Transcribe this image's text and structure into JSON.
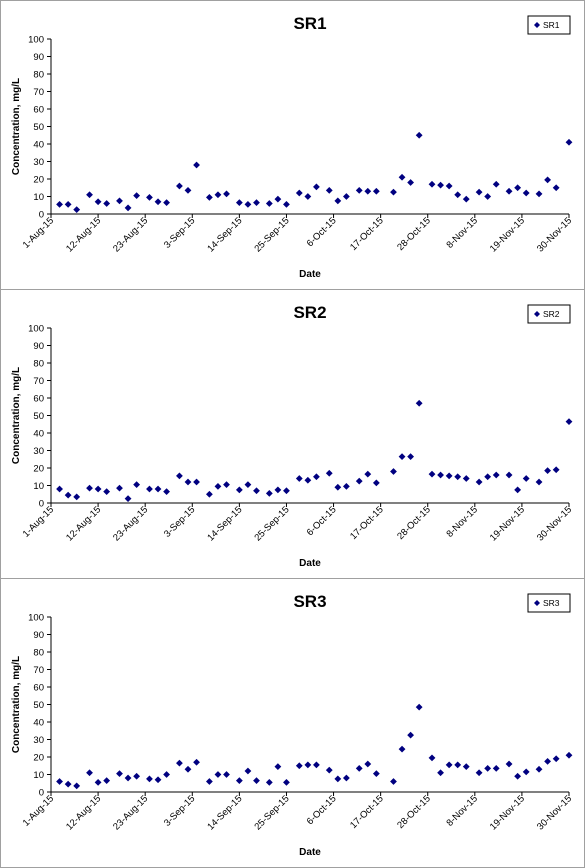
{
  "chart_data": [
    {
      "type": "scatter",
      "title": "SR1",
      "xlabel": "Date",
      "ylabel": "Concentration, mg/L",
      "ylim": [
        0,
        100
      ],
      "yticks": [
        "0",
        "10",
        "20",
        "30",
        "40",
        "50",
        "60",
        "70",
        "80",
        "90",
        "100"
      ],
      "xlim": [
        "2015-08-01",
        "2015-11-30"
      ],
      "xticks": [
        "1-Aug-15",
        "12-Aug-15",
        "23-Aug-15",
        "3-Sep-15",
        "14-Sep-15",
        "25-Sep-15",
        "6-Oct-15",
        "17-Oct-15",
        "28-Oct-15",
        "8-Nov-15",
        "19-Nov-15",
        "30-Nov-15"
      ],
      "legend": {
        "position": "top-right",
        "entries": [
          "SR1"
        ]
      },
      "grid": false,
      "marker_color": "#000080",
      "series": [
        {
          "name": "SR1",
          "points": [
            [
              "2015-08-03",
              5.5
            ],
            [
              "2015-08-05",
              5.5
            ],
            [
              "2015-08-07",
              2.5
            ],
            [
              "2015-08-10",
              11
            ],
            [
              "2015-08-12",
              7
            ],
            [
              "2015-08-14",
              6
            ],
            [
              "2015-08-17",
              7.5
            ],
            [
              "2015-08-19",
              3.5
            ],
            [
              "2015-08-21",
              10.5
            ],
            [
              "2015-08-24",
              9.5
            ],
            [
              "2015-08-26",
              7
            ],
            [
              "2015-08-28",
              6.5
            ],
            [
              "2015-08-31",
              16
            ],
            [
              "2015-09-02",
              13.5
            ],
            [
              "2015-09-04",
              28
            ],
            [
              "2015-09-07",
              9.5
            ],
            [
              "2015-09-09",
              11
            ],
            [
              "2015-09-11",
              11.5
            ],
            [
              "2015-09-14",
              6.5
            ],
            [
              "2015-09-16",
              5.5
            ],
            [
              "2015-09-18",
              6.5
            ],
            [
              "2015-09-21",
              6
            ],
            [
              "2015-09-23",
              8.5
            ],
            [
              "2015-09-25",
              5.5
            ],
            [
              "2015-09-28",
              12
            ],
            [
              "2015-09-30",
              10
            ],
            [
              "2015-10-02",
              15.5
            ],
            [
              "2015-10-05",
              13.5
            ],
            [
              "2015-10-07",
              7.5
            ],
            [
              "2015-10-09",
              10
            ],
            [
              "2015-10-12",
              13.5
            ],
            [
              "2015-10-14",
              13
            ],
            [
              "2015-10-16",
              13
            ],
            [
              "2015-10-20",
              12.5
            ],
            [
              "2015-10-22",
              21
            ],
            [
              "2015-10-24",
              18
            ],
            [
              "2015-10-26",
              45
            ],
            [
              "2015-10-29",
              17
            ],
            [
              "2015-10-31",
              16.5
            ],
            [
              "2015-11-02",
              16
            ],
            [
              "2015-11-04",
              11
            ],
            [
              "2015-11-06",
              8.5
            ],
            [
              "2015-11-09",
              12.5
            ],
            [
              "2015-11-11",
              10
            ],
            [
              "2015-11-13",
              17
            ],
            [
              "2015-11-16",
              13
            ],
            [
              "2015-11-18",
              15
            ],
            [
              "2015-11-20",
              12
            ],
            [
              "2015-11-23",
              11.5
            ],
            [
              "2015-11-25",
              19.5
            ],
            [
              "2015-11-27",
              15
            ],
            [
              "2015-11-30",
              41
            ]
          ]
        }
      ]
    },
    {
      "type": "scatter",
      "title": "SR2",
      "xlabel": "Date",
      "ylabel": "Concentration, mg/L",
      "ylim": [
        0,
        100
      ],
      "yticks": [
        "0",
        "10",
        "20",
        "30",
        "40",
        "50",
        "60",
        "70",
        "80",
        "90",
        "100"
      ],
      "xlim": [
        "2015-08-01",
        "2015-11-30"
      ],
      "xticks": [
        "1-Aug-15",
        "12-Aug-15",
        "23-Aug-15",
        "3-Sep-15",
        "14-Sep-15",
        "25-Sep-15",
        "6-Oct-15",
        "17-Oct-15",
        "28-Oct-15",
        "8-Nov-15",
        "19-Nov-15",
        "30-Nov-15"
      ],
      "legend": {
        "position": "top-right",
        "entries": [
          "SR2"
        ]
      },
      "grid": false,
      "marker_color": "#000080",
      "series": [
        {
          "name": "SR2",
          "points": [
            [
              "2015-08-03",
              8
            ],
            [
              "2015-08-05",
              4.5
            ],
            [
              "2015-08-07",
              3.5
            ],
            [
              "2015-08-10",
              8.5
            ],
            [
              "2015-08-12",
              8
            ],
            [
              "2015-08-14",
              6.5
            ],
            [
              "2015-08-17",
              8.5
            ],
            [
              "2015-08-19",
              2.5
            ],
            [
              "2015-08-21",
              10.5
            ],
            [
              "2015-08-24",
              8
            ],
            [
              "2015-08-26",
              8
            ],
            [
              "2015-08-28",
              6.5
            ],
            [
              "2015-08-31",
              15.5
            ],
            [
              "2015-09-02",
              12
            ],
            [
              "2015-09-04",
              12
            ],
            [
              "2015-09-07",
              5
            ],
            [
              "2015-09-09",
              9.5
            ],
            [
              "2015-09-11",
              10.5
            ],
            [
              "2015-09-14",
              7.5
            ],
            [
              "2015-09-16",
              10.5
            ],
            [
              "2015-09-18",
              7
            ],
            [
              "2015-09-21",
              5.5
            ],
            [
              "2015-09-23",
              7.5
            ],
            [
              "2015-09-25",
              7
            ],
            [
              "2015-09-28",
              14
            ],
            [
              "2015-09-30",
              13
            ],
            [
              "2015-10-02",
              15
            ],
            [
              "2015-10-05",
              17
            ],
            [
              "2015-10-07",
              9
            ],
            [
              "2015-10-09",
              9.5
            ],
            [
              "2015-10-12",
              12.5
            ],
            [
              "2015-10-14",
              16.5
            ],
            [
              "2015-10-16",
              11.5
            ],
            [
              "2015-10-20",
              18
            ],
            [
              "2015-10-22",
              26.5
            ],
            [
              "2015-10-24",
              26.5
            ],
            [
              "2015-10-26",
              57
            ],
            [
              "2015-10-29",
              16.5
            ],
            [
              "2015-10-31",
              16
            ],
            [
              "2015-11-02",
              15.5
            ],
            [
              "2015-11-04",
              15
            ],
            [
              "2015-11-06",
              14
            ],
            [
              "2015-11-09",
              12
            ],
            [
              "2015-11-11",
              15
            ],
            [
              "2015-11-13",
              16
            ],
            [
              "2015-11-16",
              16
            ],
            [
              "2015-11-18",
              7.5
            ],
            [
              "2015-11-20",
              14
            ],
            [
              "2015-11-23",
              12
            ],
            [
              "2015-11-25",
              18.5
            ],
            [
              "2015-11-27",
              19
            ],
            [
              "2015-11-30",
              46.5
            ]
          ]
        }
      ]
    },
    {
      "type": "scatter",
      "title": "SR3",
      "xlabel": "Date",
      "ylabel": "Concentration, mg/L",
      "ylim": [
        0,
        100
      ],
      "yticks": [
        "0",
        "10",
        "20",
        "30",
        "40",
        "50",
        "60",
        "70",
        "80",
        "90",
        "100"
      ],
      "xlim": [
        "2015-08-01",
        "2015-11-30"
      ],
      "xticks": [
        "1-Aug-15",
        "12-Aug-15",
        "23-Aug-15",
        "3-Sep-15",
        "14-Sep-15",
        "25-Sep-15",
        "6-Oct-15",
        "17-Oct-15",
        "28-Oct-15",
        "8-Nov-15",
        "19-Nov-15",
        "30-Nov-15"
      ],
      "legend": {
        "position": "top-right",
        "entries": [
          "SR3"
        ]
      },
      "grid": false,
      "marker_color": "#000080",
      "series": [
        {
          "name": "SR3",
          "points": [
            [
              "2015-08-03",
              6
            ],
            [
              "2015-08-05",
              4.5
            ],
            [
              "2015-08-07",
              3.5
            ],
            [
              "2015-08-10",
              11
            ],
            [
              "2015-08-12",
              5.5
            ],
            [
              "2015-08-14",
              6.5
            ],
            [
              "2015-08-17",
              10.5
            ],
            [
              "2015-08-19",
              8
            ],
            [
              "2015-08-21",
              9
            ],
            [
              "2015-08-24",
              7.5
            ],
            [
              "2015-08-26",
              7
            ],
            [
              "2015-08-28",
              10
            ],
            [
              "2015-08-31",
              16.5
            ],
            [
              "2015-09-02",
              13
            ],
            [
              "2015-09-04",
              17
            ],
            [
              "2015-09-07",
              6
            ],
            [
              "2015-09-09",
              10
            ],
            [
              "2015-09-11",
              10
            ],
            [
              "2015-09-14",
              6.5
            ],
            [
              "2015-09-16",
              12
            ],
            [
              "2015-09-18",
              6.5
            ],
            [
              "2015-09-21",
              5.5
            ],
            [
              "2015-09-23",
              14.5
            ],
            [
              "2015-09-25",
              5.5
            ],
            [
              "2015-09-28",
              15
            ],
            [
              "2015-09-30",
              15.5
            ],
            [
              "2015-10-02",
              15.5
            ],
            [
              "2015-10-05",
              12.5
            ],
            [
              "2015-10-07",
              7.5
            ],
            [
              "2015-10-09",
              8
            ],
            [
              "2015-10-12",
              13.5
            ],
            [
              "2015-10-14",
              16
            ],
            [
              "2015-10-16",
              10.5
            ],
            [
              "2015-10-20",
              6
            ],
            [
              "2015-10-22",
              24.5
            ],
            [
              "2015-10-24",
              32.5
            ],
            [
              "2015-10-26",
              48.5
            ],
            [
              "2015-10-29",
              19.5
            ],
            [
              "2015-10-31",
              11
            ],
            [
              "2015-11-02",
              15.5
            ],
            [
              "2015-11-04",
              15.5
            ],
            [
              "2015-11-06",
              14.5
            ],
            [
              "2015-11-09",
              11
            ],
            [
              "2015-11-11",
              13.5
            ],
            [
              "2015-11-13",
              13.5
            ],
            [
              "2015-11-16",
              16
            ],
            [
              "2015-11-18",
              9
            ],
            [
              "2015-11-20",
              11.5
            ],
            [
              "2015-11-23",
              13
            ],
            [
              "2015-11-25",
              17.5
            ],
            [
              "2015-11-27",
              19
            ],
            [
              "2015-11-30",
              21
            ]
          ]
        }
      ]
    }
  ]
}
